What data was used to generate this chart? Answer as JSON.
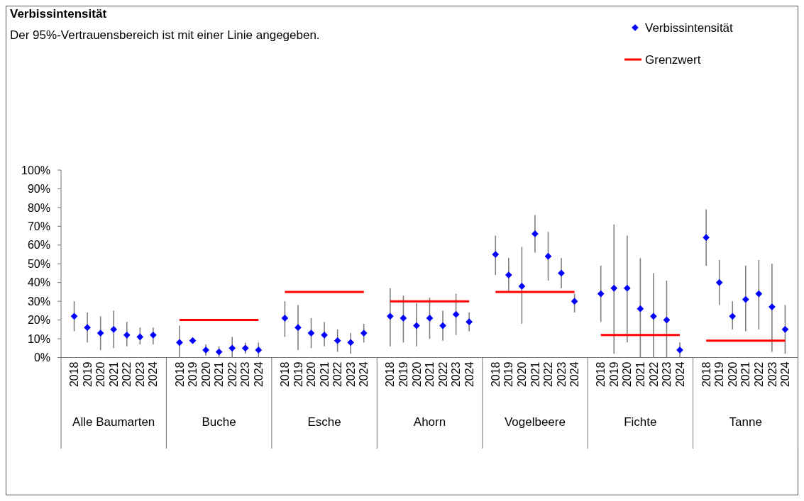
{
  "chart_data": {
    "type": "scatter",
    "title": "Verbissintensität",
    "subtitle": "Der 95%-Vertrauensbereich ist mit einer Linie angegeben.",
    "categories": [
      "2018",
      "2019",
      "2020",
      "2021",
      "2022",
      "2023",
      "2024",
      null,
      "2018",
      "2019",
      "2020",
      "2021",
      "2022",
      "2023",
      "2024",
      null,
      "2018",
      "2019",
      "2020",
      "2021",
      "2022",
      "2023",
      "2024",
      null,
      "2018",
      "2019",
      "2020",
      "2021",
      "2022",
      "2023",
      "2024",
      null,
      "2018",
      "2019",
      "2020",
      "2021",
      "2022",
      "2023",
      "2024",
      null,
      "2018",
      "2019",
      "2020",
      "2021",
      "2022",
      "2023",
      "2024",
      null,
      "2018",
      "2019",
      "2020",
      "2021",
      "2022",
      "2023",
      "2024",
      null
    ],
    "annotations": [
      "Alle Baumarten",
      "Buche",
      "Esche",
      "Ahorn",
      "Vogelbeere",
      "Fichte",
      "Tanne"
    ],
    "series": [
      {
        "name": "Verbissintensität",
        "color": "#0000ff",
        "marker": "diamond",
        "values": [
          22,
          16,
          13,
          15,
          12,
          11,
          12,
          null,
          8,
          9,
          4,
          3,
          5,
          5,
          4,
          null,
          21,
          16,
          13,
          12,
          9,
          8,
          13,
          null,
          22,
          21,
          17,
          21,
          17,
          23,
          19,
          null,
          55,
          44,
          38,
          66,
          54,
          45,
          30,
          null,
          34,
          37,
          37,
          26,
          22,
          20,
          4,
          null,
          64,
          40,
          22,
          31,
          34,
          27,
          15,
          null
        ],
        "errors": [
          [
            14,
            30
          ],
          [
            8,
            24
          ],
          [
            4,
            22
          ],
          [
            5,
            25
          ],
          [
            6,
            19
          ],
          [
            7,
            16
          ],
          [
            7,
            16
          ],
          null,
          [
            0,
            17
          ],
          null,
          [
            1,
            7
          ],
          [
            0,
            6
          ],
          [
            0,
            11
          ],
          [
            2,
            8
          ],
          [
            0,
            8
          ],
          null,
          [
            11,
            30
          ],
          [
            4,
            28
          ],
          [
            5,
            21
          ],
          [
            6,
            19
          ],
          [
            3,
            15
          ],
          [
            2,
            13
          ],
          [
            8,
            18
          ],
          null,
          [
            6,
            37
          ],
          [
            8,
            33
          ],
          [
            6,
            29
          ],
          [
            10,
            32
          ],
          [
            9,
            25
          ],
          [
            12,
            34
          ],
          [
            14,
            24
          ],
          null,
          [
            44,
            65
          ],
          [
            35,
            53
          ],
          [
            18,
            59
          ],
          [
            56,
            76
          ],
          [
            41,
            67
          ],
          [
            37,
            53
          ],
          [
            24,
            34
          ],
          null,
          [
            19,
            49
          ],
          [
            2,
            71
          ],
          [
            8,
            65
          ],
          [
            0,
            53
          ],
          [
            0,
            45
          ],
          [
            0,
            41
          ],
          [
            0,
            8
          ],
          null,
          [
            49,
            79
          ],
          [
            28,
            52
          ],
          [
            15,
            30
          ],
          [
            14,
            49
          ],
          [
            15,
            52
          ],
          [
            3,
            50
          ],
          [
            2,
            28
          ],
          null
        ]
      },
      {
        "name": "Grenzwert",
        "type": "line",
        "marker": "none",
        "color": "#ff0000",
        "values": [
          null,
          null,
          null,
          null,
          null,
          null,
          null,
          null,
          20,
          20,
          20,
          20,
          20,
          20,
          20,
          null,
          35,
          35,
          35,
          35,
          35,
          35,
          35,
          null,
          30,
          30,
          30,
          30,
          30,
          30,
          30,
          null,
          35,
          35,
          35,
          35,
          35,
          35,
          35,
          null,
          12,
          12,
          12,
          12,
          12,
          12,
          12,
          null,
          9,
          9,
          9,
          9,
          9,
          9,
          9,
          null
        ]
      }
    ],
    "legend": "top right",
    "ylim": [
      0,
      100
    ],
    "yticks": [
      {
        "value": 0,
        "label": "0%"
      },
      {
        "value": 10,
        "label": "10%"
      },
      {
        "value": 20,
        "label": "20%"
      },
      {
        "value": 30,
        "label": "30%"
      },
      {
        "value": 40,
        "label": "40%"
      },
      {
        "value": 50,
        "label": "50%"
      },
      {
        "value": 60,
        "label": "60%"
      },
      {
        "value": 70,
        "label": "70%"
      },
      {
        "value": 80,
        "label": "80%"
      },
      {
        "value": 90,
        "label": "90%"
      },
      {
        "value": 100,
        "label": "100%"
      }
    ]
  }
}
